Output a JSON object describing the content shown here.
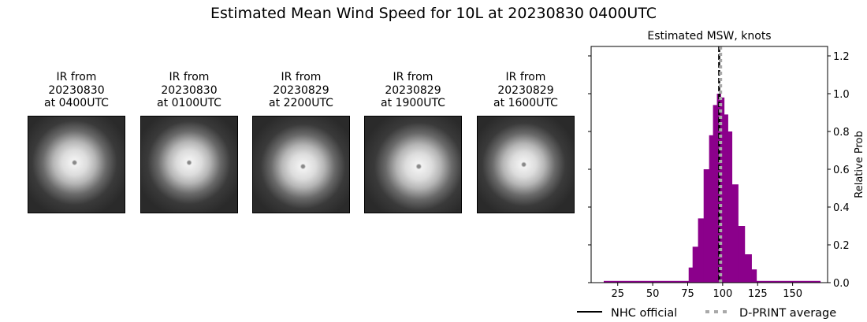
{
  "title": "Estimated Mean Wind Speed for 10L at 20230830 0400UTC",
  "panels": [
    {
      "line1": "IR from",
      "line2": "20230830",
      "line3": "at 0400UTC"
    },
    {
      "line1": "IR from",
      "line2": "20230830",
      "line3": "at 0100UTC"
    },
    {
      "line1": "IR from",
      "line2": "20230829",
      "line3": "at 2200UTC"
    },
    {
      "line1": "IR from",
      "line2": "20230829",
      "line3": "at 1900UTC"
    },
    {
      "line1": "IR from",
      "line2": "20230829",
      "line3": "at 1600UTC"
    }
  ],
  "chart_data": {
    "type": "bar",
    "title": "Estimated MSW, knots",
    "xlabel": "",
    "ylabel": "Relative Prob",
    "xlim": [
      6,
      175
    ],
    "ylim": [
      0,
      1.25
    ],
    "xticks": [
      25,
      50,
      75,
      100,
      125,
      150
    ],
    "yticks": [
      0.0,
      0.2,
      0.4,
      0.6,
      0.8,
      1.0,
      1.2
    ],
    "y_axis_side": "right",
    "grid": false,
    "bin_edges": [
      75.7,
      78.5,
      82.4,
      86.4,
      90.3,
      93.1,
      95.9,
      98.6,
      101.0,
      103.7,
      106.6,
      111.0,
      115.7,
      120.6,
      124.1
    ],
    "values": [
      0.08,
      0.19,
      0.34,
      0.6,
      0.78,
      0.94,
      1.0,
      0.98,
      0.89,
      0.8,
      0.52,
      0.3,
      0.15,
      0.07
    ],
    "tail_range": [
      15,
      170
    ],
    "tail_value": 0.005,
    "bar_color": "#8b008b",
    "lines": [
      {
        "name": "NHC official",
        "x": 97.5,
        "color": "#000000",
        "style": "dashed"
      },
      {
        "name": "D-PRINT average",
        "x": 98.5,
        "color": "#a9a9a9",
        "style": "dotted"
      }
    ],
    "legend_placement": "bottom"
  }
}
